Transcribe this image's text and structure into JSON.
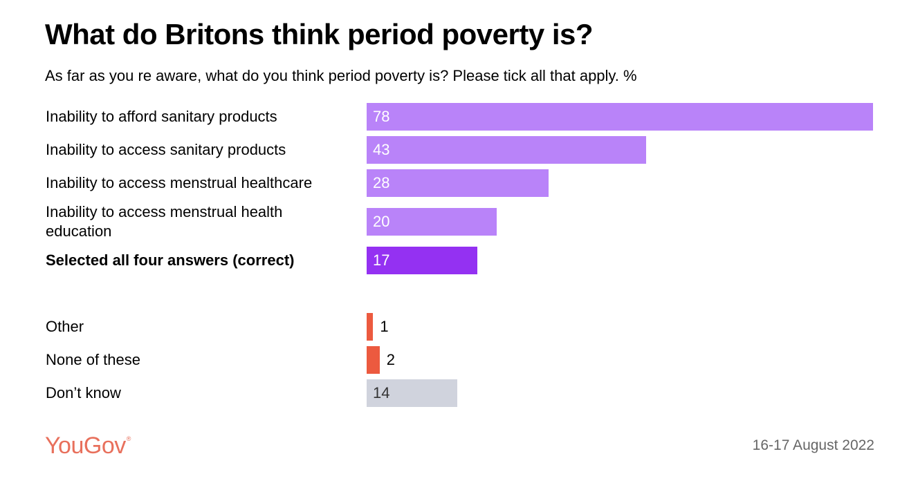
{
  "title": "What do Britons think period poverty is?",
  "subtitle": "As far as you re aware, what do you think period poverty is? Please tick all that apply. %",
  "logo": {
    "text": "YouGov",
    "mark": "®"
  },
  "date": "16-17 August 2022",
  "colors": {
    "purple_light": "#b983f9",
    "purple_dark": "#9431f2",
    "red": "#ec5a3f",
    "grey": "#d0d3dd"
  },
  "chart_data": {
    "type": "bar",
    "orientation": "horizontal",
    "categories": [
      "Inability to afford sanitary products",
      "Inability to access sanitary products",
      "Inability to access menstrual healthcare",
      "Inability to access menstrual health education",
      "Selected all four answers (correct)",
      "Other",
      "None of these",
      "Don’t know"
    ],
    "values": [
      78,
      43,
      28,
      20,
      17,
      1,
      2,
      14
    ],
    "bar_colors": [
      "#b983f9",
      "#b983f9",
      "#b983f9",
      "#b983f9",
      "#9431f2",
      "#ec5a3f",
      "#ec5a3f",
      "#d0d3dd"
    ],
    "bold": [
      false,
      false,
      false,
      false,
      true,
      false,
      false,
      false
    ],
    "title": "What do Britons think period poverty is?",
    "unit": "%",
    "xlim": [
      0,
      78
    ],
    "grid": false,
    "legend": false
  }
}
